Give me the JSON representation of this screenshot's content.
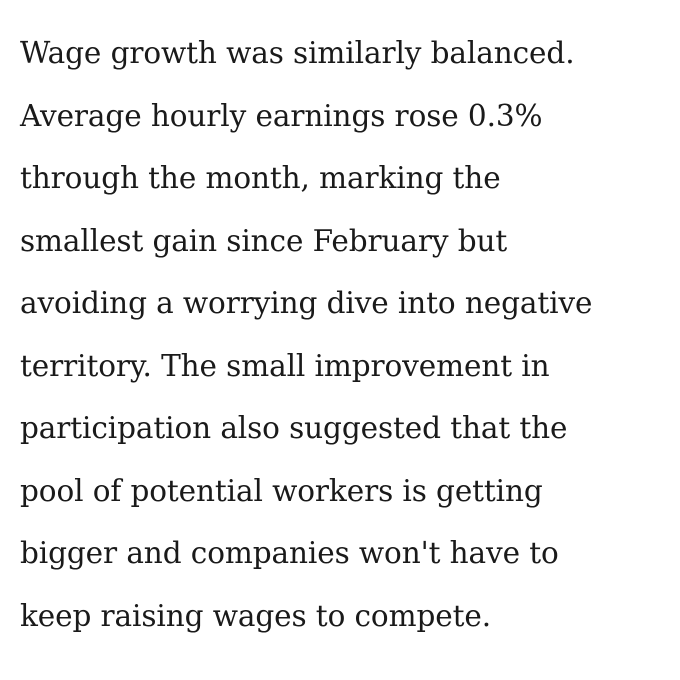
{
  "article": {
    "paragraph_lines": [
      "Wage growth was similarly balanced.",
      "Average hourly earnings rose 0.3%",
      "through the month, marking the",
      "smallest gain since February but",
      "avoiding a worrying dive into negative",
      "territory. The small improvement in",
      "participation also suggested that the",
      "pool of potential workers is getting",
      "bigger and companies won't have to",
      "keep raising wages to compete."
    ]
  }
}
